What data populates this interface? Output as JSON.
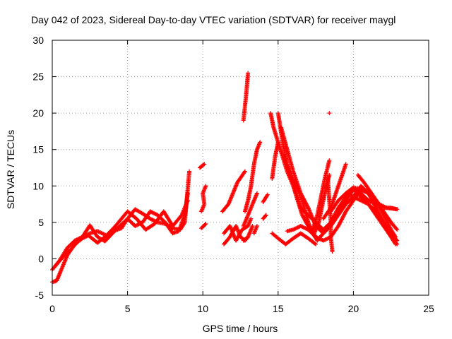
{
  "chart_data": {
    "type": "scatter",
    "title": "Day 042 of 2023, Sidereal Day-to-day VTEC variation (SDTVAR) for receiver maygl",
    "xlabel": "GPS time / hours",
    "ylabel": "SDTVAR / TECUs",
    "xlim": [
      0,
      25
    ],
    "ylim": [
      -5,
      30
    ],
    "xticks": [
      0,
      5,
      10,
      15,
      20,
      25
    ],
    "yticks": [
      -5,
      0,
      5,
      10,
      15,
      20,
      25,
      30
    ],
    "grid": true,
    "marker": "+",
    "color": "#ff0000",
    "tracks": [
      {
        "name": "t1",
        "points": [
          [
            0.0,
            -1.5
          ],
          [
            0.5,
            -0.2
          ],
          [
            1.0,
            1.5
          ],
          [
            1.5,
            2.5
          ],
          [
            2.0,
            3.0
          ],
          [
            2.5,
            4.6
          ],
          [
            3.0,
            3.0
          ],
          [
            3.5,
            2.4
          ],
          [
            4.0,
            3.5
          ],
          [
            4.5,
            4.5
          ],
          [
            5.0,
            5.5
          ],
          [
            5.5,
            6.8
          ],
          [
            6.0,
            6.2
          ],
          [
            6.5,
            5.5
          ],
          [
            7.0,
            5.0
          ],
          [
            7.5,
            4.8
          ],
          [
            8.0,
            4.2
          ],
          [
            8.5,
            4.0
          ],
          [
            8.8,
            5.0
          ],
          [
            9.1,
            12.0
          ]
        ]
      },
      {
        "name": "t2",
        "points": [
          [
            0.0,
            -3.2
          ],
          [
            0.3,
            -3.0
          ],
          [
            0.6,
            -1.5
          ],
          [
            1.0,
            0.5
          ],
          [
            1.5,
            2.0
          ],
          [
            2.0,
            2.8
          ],
          [
            2.4,
            3.2
          ],
          [
            3.0,
            2.2
          ],
          [
            3.5,
            3.0
          ],
          [
            4.0,
            3.8
          ],
          [
            4.6,
            4.2
          ],
          [
            5.0,
            5.5
          ],
          [
            5.5,
            4.5
          ],
          [
            6.0,
            5.0
          ],
          [
            6.5,
            6.5
          ],
          [
            7.0,
            6.0
          ],
          [
            7.5,
            5.0
          ],
          [
            8.0,
            3.5
          ],
          [
            8.4,
            3.8
          ],
          [
            8.8,
            6.0
          ],
          [
            9.0,
            9.0
          ]
        ]
      },
      {
        "name": "t3",
        "points": [
          [
            0.2,
            -1.0
          ],
          [
            0.8,
            0.5
          ],
          [
            1.2,
            1.2
          ],
          [
            1.8,
            2.6
          ],
          [
            2.5,
            3.5
          ],
          [
            3.0,
            3.8
          ],
          [
            3.6,
            3.2
          ],
          [
            4.2,
            4.5
          ],
          [
            5.0,
            6.5
          ],
          [
            5.6,
            5.5
          ],
          [
            6.2,
            4.0
          ],
          [
            6.8,
            4.8
          ],
          [
            7.4,
            6.5
          ],
          [
            8.0,
            4.5
          ],
          [
            8.6,
            6.0
          ],
          [
            9.0,
            8.0
          ]
        ]
      },
      {
        "name": "t4",
        "points": [
          [
            9.9,
            4.2
          ],
          [
            10.2,
            4.8
          ]
        ]
      },
      {
        "name": "t5",
        "points": [
          [
            9.9,
            6.5
          ],
          [
            10.1,
            7.5
          ],
          [
            10.0,
            9.0
          ],
          [
            10.2,
            10.0
          ]
        ]
      },
      {
        "name": "t6",
        "points": [
          [
            9.8,
            12.5
          ],
          [
            10.1,
            13.0
          ]
        ]
      },
      {
        "name": "t7",
        "points": [
          [
            11.3,
            6.5
          ],
          [
            11.7,
            7.5
          ],
          [
            12.0,
            9.0
          ],
          [
            12.3,
            10.5
          ],
          [
            12.8,
            12.0
          ]
        ]
      },
      {
        "name": "t8",
        "points": [
          [
            11.4,
            2.0
          ],
          [
            11.8,
            3.0
          ],
          [
            12.2,
            4.5
          ],
          [
            12.5,
            3.0
          ],
          [
            12.8,
            2.5
          ],
          [
            13.0,
            3.0
          ]
        ]
      },
      {
        "name": "t9",
        "points": [
          [
            11.4,
            3.5
          ],
          [
            11.8,
            4.5
          ],
          [
            12.2,
            2.5
          ],
          [
            12.6,
            4.0
          ],
          [
            13.0,
            4.5
          ],
          [
            13.2,
            5.5
          ]
        ]
      },
      {
        "name": "t10",
        "points": [
          [
            12.8,
            6.5
          ],
          [
            13.0,
            8.0
          ],
          [
            13.2,
            10.0
          ],
          [
            13.4,
            13.0
          ],
          [
            13.6,
            15.0
          ],
          [
            13.8,
            16.0
          ]
        ]
      },
      {
        "name": "t11",
        "points": [
          [
            12.7,
            4.5
          ],
          [
            13.0,
            6.0
          ],
          [
            13.3,
            7.5
          ],
          [
            13.6,
            9.0
          ]
        ]
      },
      {
        "name": "t12",
        "points": [
          [
            12.7,
            2.5
          ],
          [
            13.0,
            3.0
          ],
          [
            13.3,
            4.5
          ]
        ]
      },
      {
        "name": "t13",
        "points": [
          [
            12.7,
            19.0
          ],
          [
            12.8,
            21.0
          ],
          [
            12.9,
            23.0
          ],
          [
            13.0,
            25.5
          ]
        ]
      },
      {
        "name": "t14",
        "points": [
          [
            13.4,
            3.5
          ],
          [
            13.6,
            4.5
          ]
        ]
      },
      {
        "name": "t15",
        "points": [
          [
            14.0,
            7.8
          ],
          [
            14.3,
            8.8
          ]
        ]
      },
      {
        "name": "t16",
        "points": [
          [
            14.0,
            5.5
          ],
          [
            14.2,
            6.0
          ]
        ]
      },
      {
        "name": "t17",
        "points": [
          [
            14.6,
            11.0
          ],
          [
            14.8,
            14.0
          ],
          [
            15.0,
            16.0
          ]
        ]
      },
      {
        "name": "t18",
        "points": [
          [
            14.6,
            3.5
          ],
          [
            15.0,
            2.8
          ],
          [
            15.5,
            2.0
          ],
          [
            16.0,
            2.8
          ],
          [
            16.5,
            3.5
          ],
          [
            17.0,
            2.8
          ],
          [
            17.5,
            2.0
          ]
        ]
      },
      {
        "name": "t19",
        "points": [
          [
            14.5,
            20.0
          ],
          [
            14.7,
            18.0
          ],
          [
            15.0,
            16.0
          ],
          [
            15.3,
            14.0
          ],
          [
            15.6,
            12.0
          ],
          [
            16.0,
            10.0
          ],
          [
            16.3,
            8.0
          ],
          [
            16.6,
            6.0
          ],
          [
            17.0,
            4.5
          ],
          [
            17.5,
            3.0
          ],
          [
            18.0,
            2.5
          ],
          [
            18.5,
            3.0
          ],
          [
            19.0,
            4.5
          ],
          [
            19.5,
            6.5
          ],
          [
            20.0,
            8.0
          ],
          [
            20.5,
            9.5
          ],
          [
            21.0,
            9.0
          ],
          [
            21.5,
            8.0
          ],
          [
            22.0,
            6.0
          ],
          [
            22.5,
            4.0
          ],
          [
            22.8,
            3.0
          ]
        ]
      },
      {
        "name": "t20",
        "points": [
          [
            15.0,
            20.0
          ],
          [
            15.3,
            16.0
          ],
          [
            15.6,
            13.0
          ],
          [
            15.9,
            11.0
          ],
          [
            16.2,
            9.0
          ],
          [
            16.5,
            7.0
          ],
          [
            17.0,
            6.0
          ],
          [
            17.5,
            5.0
          ],
          [
            18.0,
            4.0
          ],
          [
            18.5,
            5.0
          ],
          [
            19.0,
            6.5
          ],
          [
            19.5,
            8.0
          ],
          [
            20.0,
            9.5
          ],
          [
            20.5,
            9.0
          ],
          [
            21.0,
            8.0
          ],
          [
            21.5,
            7.5
          ],
          [
            22.0,
            7.0
          ],
          [
            22.5,
            7.0
          ],
          [
            22.9,
            6.8
          ]
        ]
      },
      {
        "name": "t21",
        "points": [
          [
            15.2,
            18.0
          ],
          [
            15.6,
            15.0
          ],
          [
            16.0,
            12.0
          ],
          [
            16.5,
            9.0
          ],
          [
            17.0,
            7.0
          ],
          [
            17.5,
            4.5
          ],
          [
            18.0,
            3.5
          ],
          [
            18.5,
            4.5
          ],
          [
            19.0,
            6.0
          ],
          [
            19.5,
            7.5
          ],
          [
            20.0,
            8.5
          ],
          [
            20.5,
            10.0
          ],
          [
            21.0,
            9.0
          ],
          [
            21.5,
            7.0
          ],
          [
            22.0,
            5.0
          ],
          [
            22.5,
            3.0
          ],
          [
            22.8,
            2.0
          ]
        ]
      },
      {
        "name": "t22",
        "points": [
          [
            15.4,
            14.0
          ],
          [
            15.8,
            11.5
          ],
          [
            16.2,
            10.0
          ],
          [
            16.6,
            8.0
          ],
          [
            17.0,
            5.0
          ],
          [
            17.3,
            3.5
          ],
          [
            17.6,
            2.5
          ],
          [
            18.0,
            3.5
          ],
          [
            18.5,
            5.0
          ],
          [
            19.0,
            7.0
          ],
          [
            19.5,
            8.5
          ],
          [
            20.0,
            9.5
          ],
          [
            20.5,
            8.5
          ],
          [
            21.0,
            7.5
          ],
          [
            21.5,
            6.5
          ],
          [
            22.0,
            5.0
          ],
          [
            22.5,
            3.5
          ],
          [
            22.9,
            2.5
          ]
        ]
      },
      {
        "name": "t23",
        "points": [
          [
            15.6,
            3.8
          ],
          [
            16.0,
            4.0
          ],
          [
            16.5,
            4.5
          ],
          [
            17.0,
            4.0
          ],
          [
            17.5,
            3.0
          ]
        ]
      },
      {
        "name": "t24",
        "points": [
          [
            17.3,
            4.0
          ],
          [
            17.6,
            6.0
          ],
          [
            17.9,
            9.0
          ],
          [
            18.1,
            11.0
          ],
          [
            18.4,
            13.5
          ]
        ]
      },
      {
        "name": "t25",
        "points": [
          [
            17.4,
            3.5
          ],
          [
            17.7,
            5.0
          ],
          [
            18.0,
            8.0
          ],
          [
            18.2,
            10.0
          ],
          [
            18.4,
            11.5
          ]
        ]
      },
      {
        "name": "t26",
        "points": [
          [
            18.3,
            11.0
          ],
          [
            18.4,
            8.0
          ],
          [
            18.5,
            5.0
          ],
          [
            18.5,
            3.0
          ],
          [
            18.6,
            1.0
          ]
        ]
      },
      {
        "name": "t27",
        "points": [
          [
            18.4,
            20.0
          ]
        ]
      },
      {
        "name": "t28",
        "points": [
          [
            18.0,
            5.5
          ],
          [
            18.5,
            7.0
          ],
          [
            19.0,
            10.0
          ],
          [
            19.5,
            13.0
          ]
        ]
      },
      {
        "name": "t29",
        "points": [
          [
            18.5,
            6.5
          ],
          [
            19.0,
            8.0
          ],
          [
            19.5,
            9.0
          ],
          [
            20.0,
            8.5
          ],
          [
            20.5,
            8.0
          ],
          [
            21.0,
            7.5
          ],
          [
            21.5,
            6.0
          ],
          [
            22.0,
            4.5
          ],
          [
            22.5,
            3.0
          ],
          [
            22.9,
            2.0
          ]
        ]
      },
      {
        "name": "t30",
        "points": [
          [
            20.3,
            11.5
          ],
          [
            20.7,
            10.5
          ],
          [
            21.2,
            9.0
          ],
          [
            21.7,
            7.5
          ],
          [
            22.2,
            7.0
          ],
          [
            22.9,
            6.8
          ]
        ]
      },
      {
        "name": "t31",
        "points": [
          [
            19.5,
            9.0
          ],
          [
            20.0,
            9.8
          ],
          [
            20.5,
            9.5
          ],
          [
            21.0,
            9.0
          ],
          [
            21.5,
            8.0
          ],
          [
            22.0,
            6.5
          ],
          [
            22.5,
            5.0
          ],
          [
            22.9,
            4.0
          ]
        ]
      }
    ]
  }
}
